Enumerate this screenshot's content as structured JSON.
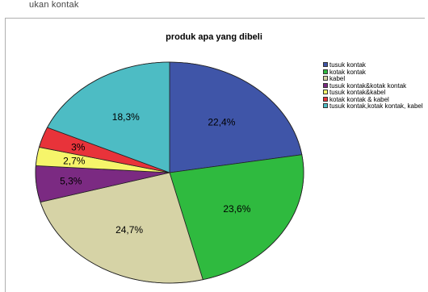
{
  "header": {
    "text": "ukan kontak"
  },
  "chart_data": {
    "type": "pie",
    "title": "produk apa yang dibeli",
    "categories": [
      "tusuk kontak",
      "kotak kontak",
      "kabel",
      "tusuk kontak&kotak kontak",
      "tusuk kontak&kabel",
      "kotak kontak & kabel",
      "tusuk kontak,kotak kontak, kabel"
    ],
    "values": [
      22.4,
      23.6,
      24.7,
      5.3,
      2.7,
      3.0,
      18.3
    ],
    "labels": [
      "22,4%",
      "23,6%",
      "24,7%",
      "5,3%",
      "2,7%",
      "3%",
      "18,3%"
    ],
    "colors": [
      "#3f55a8",
      "#2fba3f",
      "#d6d3a6",
      "#7b2a82",
      "#f6f56a",
      "#e8333a",
      "#4dbcc4"
    ],
    "legend": "right",
    "start_angle": "top",
    "direction": "clockwise"
  }
}
